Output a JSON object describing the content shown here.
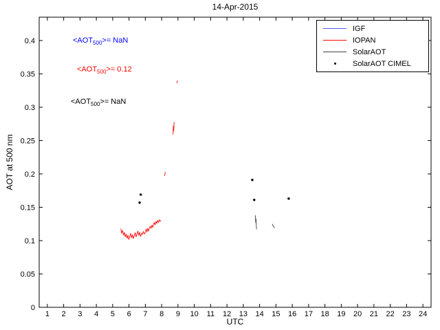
{
  "chart_data": {
    "type": "line",
    "title": "14-Apr-2015",
    "xlabel": "UTC",
    "ylabel": "AOT at 500 nm",
    "xlim": [
      0.5,
      24.5
    ],
    "ylim": [
      0,
      0.435
    ],
    "xticks": [
      1,
      2,
      3,
      4,
      5,
      6,
      7,
      8,
      9,
      10,
      11,
      12,
      13,
      14,
      15,
      16,
      17,
      18,
      19,
      20,
      21,
      22,
      23,
      24
    ],
    "yticks": [
      0,
      0.05,
      0.1,
      0.15,
      0.2,
      0.25,
      0.3,
      0.35,
      0.4
    ],
    "ytick_labels": [
      "0",
      "0.05",
      "0.1",
      "0.15",
      "0.2",
      "0.25",
      "0.3",
      "0.35",
      "0.4"
    ],
    "grid": false,
    "frame_color": "#000000",
    "legend": {
      "position": "top-right",
      "entries": [
        {
          "label": "IGF",
          "color": "#5555ff",
          "style": "line"
        },
        {
          "label": "IOPAN",
          "color": "#ff0000",
          "style": "line"
        },
        {
          "label": "SolarAOT",
          "color": "#404040",
          "style": "line"
        },
        {
          "label": "SolarAOT CIMEL",
          "color": "#000000",
          "style": "dot"
        }
      ]
    },
    "series": [
      {
        "name": "IGF",
        "color": "#5555ff",
        "style": "line",
        "segments": []
      },
      {
        "name": "IOPAN",
        "color": "#ff0000",
        "style": "line",
        "segments": [
          [
            [
              5.5,
              0.118
            ],
            [
              5.55,
              0.111
            ],
            [
              5.61,
              0.1155
            ],
            [
              5.66,
              0.108
            ],
            [
              5.72,
              0.1125
            ],
            [
              5.77,
              0.1055
            ],
            [
              5.83,
              0.11
            ],
            [
              5.88,
              0.1035
            ],
            [
              5.94,
              0.108
            ],
            [
              5.99,
              0.1015
            ],
            [
              6.05,
              0.1065
            ],
            [
              6.1,
              0.111
            ],
            [
              6.16,
              0.104
            ],
            [
              6.21,
              0.109
            ],
            [
              6.27,
              0.103
            ],
            [
              6.32,
              0.1075
            ],
            [
              6.38,
              0.112
            ],
            [
              6.43,
              0.1055
            ],
            [
              6.49,
              0.11
            ],
            [
              6.54,
              0.1145
            ],
            [
              6.6,
              0.108
            ],
            [
              6.65,
              0.1125
            ],
            [
              6.71,
              0.106
            ],
            [
              6.77,
              0.111
            ],
            [
              6.82,
              0.1095
            ],
            [
              6.88,
              0.1135
            ],
            [
              6.94,
              0.11
            ],
            [
              7.0,
              0.1125
            ],
            [
              7.05,
              0.117
            ],
            [
              7.1,
              0.1135
            ],
            [
              7.15,
              0.118
            ],
            [
              7.2,
              0.1145
            ],
            [
              7.25,
              0.119
            ],
            [
              7.3,
              0.1215
            ],
            [
              7.35,
              0.1185
            ],
            [
              7.4,
              0.123
            ],
            [
              7.45,
              0.12
            ],
            [
              7.5,
              0.1245
            ],
            [
              7.55,
              0.127
            ],
            [
              7.6,
              0.124
            ],
            [
              7.65,
              0.1285
            ],
            [
              7.7,
              0.126
            ],
            [
              7.75,
              0.13
            ],
            [
              7.8,
              0.1275
            ],
            [
              7.85,
              0.131
            ],
            [
              7.9,
              0.129
            ],
            [
              7.95,
              0.1305
            ]
          ],
          [
            [
              8.18,
              0.197
            ],
            [
              8.22,
              0.203
            ]
          ],
          [
            [
              8.7,
              0.259
            ],
            [
              8.72,
              0.272
            ],
            [
              8.74,
              0.264
            ],
            [
              8.76,
              0.278
            ]
          ],
          [
            [
              8.94,
              0.336
            ],
            [
              8.97,
              0.34
            ]
          ]
        ]
      },
      {
        "name": "SolarAOT",
        "color": "#404040",
        "style": "line",
        "segments": [
          [
            [
              13.74,
              0.138
            ],
            [
              13.76,
              0.127
            ],
            [
              13.78,
              0.133
            ],
            [
              13.8,
              0.12
            ],
            [
              13.82,
              0.117
            ]
          ],
          [
            [
              14.77,
              0.125
            ],
            [
              14.85,
              0.121
            ],
            [
              14.93,
              0.119
            ]
          ]
        ]
      },
      {
        "name": "SolarAOT CIMEL",
        "color": "#000000",
        "style": "scatter",
        "points": [
          [
            6.72,
            0.169
          ],
          [
            6.65,
            0.157
          ],
          [
            13.55,
            0.191
          ],
          [
            13.67,
            0.161
          ],
          [
            15.78,
            0.163
          ]
        ]
      }
    ],
    "annotations": [
      {
        "pre": "<AOT",
        "sub": "500",
        "post": ">=  NaN",
        "color": "#0000ff"
      },
      {
        "pre": "<AOT",
        "sub": "500",
        "post": ">= 0.12",
        "color": "#ff0000"
      },
      {
        "pre": "<AOT",
        "sub": "500",
        "post": ">=  NaN",
        "color": "#000000"
      }
    ]
  }
}
